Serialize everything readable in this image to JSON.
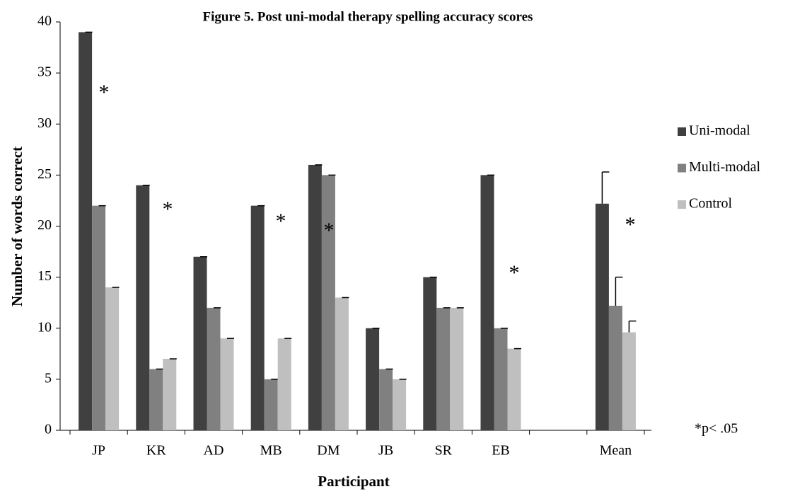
{
  "chart_data": {
    "type": "bar",
    "title": "Figure 5. Post uni-modal therapy spelling accuracy scores",
    "x_label": "Participant",
    "y_label": "Number of words correct",
    "categories": [
      "JP",
      "KR",
      "AD",
      "MB",
      "DM",
      "JB",
      "SR",
      "EB",
      null,
      "Mean"
    ],
    "series": [
      {
        "name": "Uni-modal",
        "color": "#404040",
        "values": [
          39,
          24,
          17,
          22,
          26,
          10,
          15,
          25,
          null,
          22.2
        ],
        "errors": [
          0,
          0,
          0,
          0,
          0,
          0,
          0,
          0,
          null,
          3.1
        ]
      },
      {
        "name": "Multi-modal",
        "color": "#808080",
        "values": [
          22,
          6,
          12,
          5,
          25,
          6,
          12,
          10,
          null,
          12.2
        ],
        "errors": [
          0,
          0,
          0,
          0,
          0,
          0,
          0,
          0,
          null,
          2.8
        ]
      },
      {
        "name": "Control",
        "color": "#bfbfbf",
        "values": [
          14,
          7,
          9,
          9,
          13,
          5,
          12,
          8,
          null,
          9.6
        ],
        "errors": [
          0,
          0,
          0,
          0,
          0,
          0,
          0,
          0,
          null,
          1.1
        ]
      }
    ],
    "ylim": [
      0,
      40
    ],
    "yticks": [
      0,
      5,
      10,
      15,
      20,
      25,
      30,
      35,
      40
    ],
    "annotations": [
      "*",
      "*",
      "*",
      "*",
      "*",
      "*"
    ],
    "note": "*p< .05",
    "legend": "right"
  }
}
